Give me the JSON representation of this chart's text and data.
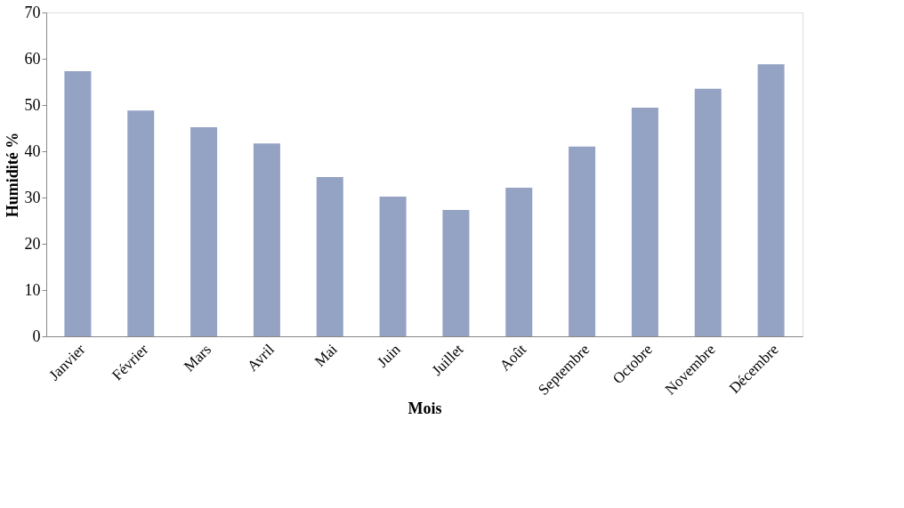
{
  "chart_data": {
    "type": "bar",
    "xlabel": "Mois",
    "ylabel": "Humidité %",
    "categories": [
      "Janvier",
      "Février",
      "Mars",
      "Avril",
      "Mai",
      "Juin",
      "Juillet",
      "Août",
      "Septembre",
      "Octobre",
      "Novembre",
      "Décembre"
    ],
    "values": [
      57.3,
      48.8,
      45.2,
      41.7,
      34.4,
      30.2,
      27.3,
      32.1,
      41.0,
      49.4,
      53.5,
      58.8
    ],
    "color": "#94a2c4",
    "ylim": [
      0,
      70
    ],
    "yticks": [
      0,
      10,
      20,
      30,
      40,
      50,
      60,
      70
    ],
    "grid": false
  }
}
